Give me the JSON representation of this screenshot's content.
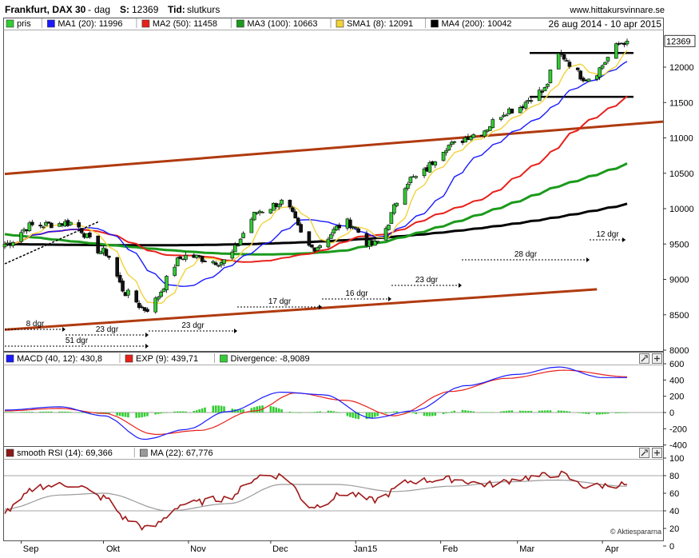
{
  "header": {
    "instrument": "Frankfurt, DAX 30",
    "dash": "-",
    "period": "dag",
    "s_label": "S:",
    "s_value": "12369",
    "time_label": "Tid:",
    "time_value": "slutkurs",
    "site": "www.hittakursvinnare.se",
    "date_range": "26 aug 2014 - 10 apr 2015"
  },
  "price_legend": [
    {
      "label": "pris",
      "color": "#33cc33"
    },
    {
      "label": "MA1 (20): 11996",
      "color": "#1a1aff"
    },
    {
      "label": "MA2 (50): 11458",
      "color": "#e8201a"
    },
    {
      "label": "MA3 (100): 10663",
      "color": "#1c9a1c"
    },
    {
      "label": "SMA1 (8): 12091",
      "color": "#f2d33a"
    },
    {
      "label": "MA4 (200): 10042",
      "color": "#000000"
    }
  ],
  "macd_legend": [
    {
      "label": "MACD (40, 12): 430,8",
      "color": "#1a1aff"
    },
    {
      "label": "EXP (9): 439,71",
      "color": "#e8201a"
    },
    {
      "label": "Divergence: -8,9089",
      "color": "#33cc33"
    }
  ],
  "rsi_legend": [
    {
      "label": "smooth RSI (14): 69,366",
      "color": "#8b1a1a"
    },
    {
      "label": "MA (22): 67,776",
      "color": "#9a9a9a"
    }
  ],
  "last_price_tag": "12369",
  "watermark": "© Aktiespararna",
  "annotations": [
    "8 dgr",
    "51 dgr",
    "23 dgr",
    "23 dgr",
    "17 dgr",
    "16 dgr",
    "23 dgr",
    "28 dgr",
    "12 dgr"
  ],
  "chart_data": [
    {
      "type": "candlestick",
      "title": "Frankfurt, DAX 30",
      "x_tick_labels": [
        "Sep",
        "Okt",
        "Nov",
        "Dec",
        "Jan15",
        "Feb",
        "Mar",
        "Apr"
      ],
      "y_tick_labels": [
        "8000",
        "8500",
        "9000",
        "9500",
        "10000",
        "10500",
        "11000",
        "11500",
        "12000"
      ],
      "ylim": [
        8000,
        12460
      ],
      "y_scale": "linear",
      "grid": false,
      "legend_position": "top",
      "close_anchor_dates": [
        "2014-08-26",
        "2014-09-05",
        "2014-09-19",
        "2014-10-01",
        "2014-10-10",
        "2014-10-16",
        "2014-10-31",
        "2014-11-13",
        "2014-11-28",
        "2014-12-05",
        "2014-12-16",
        "2014-12-29",
        "2015-01-07",
        "2015-01-22",
        "2015-02-05",
        "2015-02-13",
        "2015-02-27",
        "2015-03-10",
        "2015-03-16",
        "2015-03-26",
        "2015-04-10"
      ],
      "close_anchor_values": [
        9500,
        9760,
        9800,
        9390,
        8790,
        8580,
        9330,
        9250,
        9980,
        10090,
        9450,
        9800,
        9490,
        10430,
        10900,
        11050,
        11400,
        11650,
        12170,
        11850,
        12369
      ],
      "moving_averages": [
        {
          "name": "MA1 (20)",
          "last": 11996
        },
        {
          "name": "MA2 (50)",
          "last": 11458
        },
        {
          "name": "MA3 (100)",
          "last": 10663
        },
        {
          "name": "SMA1 (8)",
          "last": 12091
        },
        {
          "name": "MA4 (200)",
          "last": 10042
        }
      ],
      "horizontal_levels": [
        12200,
        11580
      ],
      "trendlines": [
        {
          "from": [
            "2014-08-26",
            10490
          ],
          "to": [
            "2015-04-10",
            11230
          ]
        },
        {
          "from": [
            "2014-08-26",
            8290
          ],
          "to": [
            "2015-03-30",
            8860
          ]
        }
      ],
      "duration_labels": [
        "8 dgr",
        "51 dgr",
        "23 dgr",
        "23 dgr",
        "17 dgr",
        "16 dgr",
        "23 dgr",
        "28 dgr",
        "12 dgr"
      ]
    },
    {
      "type": "line",
      "title": "MACD (40, 12)",
      "y_tick_labels": [
        "600",
        "400",
        "200",
        "0",
        "-200",
        "-400"
      ],
      "ylim": [
        -420,
        620
      ],
      "grid": false,
      "series": [
        {
          "name": "MACD (40, 12)",
          "last": 430.8,
          "anchor_dates": [
            "2014-08-26",
            "2014-09-15",
            "2014-10-01",
            "2014-10-16",
            "2014-10-31",
            "2014-11-15",
            "2014-12-05",
            "2014-12-20",
            "2015-01-07",
            "2015-01-22",
            "2015-02-10",
            "2015-03-01",
            "2015-03-16",
            "2015-04-01",
            "2015-04-10"
          ],
          "anchor_values": [
            30,
            70,
            -40,
            -330,
            -210,
            10,
            250,
            220,
            -70,
            20,
            330,
            470,
            560,
            430,
            430
          ]
        },
        {
          "name": "EXP (9)",
          "last": 439.71,
          "anchor_dates": [
            "2014-08-26",
            "2014-09-15",
            "2014-10-01",
            "2014-10-20",
            "2014-11-05",
            "2014-11-25",
            "2014-12-10",
            "2014-12-28",
            "2015-01-15",
            "2015-02-05",
            "2015-02-25",
            "2015-03-18",
            "2015-04-10"
          ],
          "anchor_values": [
            20,
            50,
            -10,
            -270,
            -220,
            20,
            240,
            150,
            -40,
            260,
            420,
            520,
            440
          ]
        },
        {
          "name": "Divergence",
          "type": "bar",
          "last": -8.9089
        }
      ]
    },
    {
      "type": "line",
      "title": "smooth RSI (14)",
      "y_tick_labels": [
        "100",
        "80",
        "60",
        "40",
        "20",
        "0"
      ],
      "ylim": [
        0,
        100
      ],
      "reference_lines": [
        80,
        40
      ],
      "grid": false,
      "series": [
        {
          "name": "smooth RSI (14)",
          "last": 69.366,
          "anchor_dates": [
            "2014-08-26",
            "2014-09-08",
            "2014-09-20",
            "2014-10-01",
            "2014-10-10",
            "2014-10-17",
            "2014-10-31",
            "2014-11-14",
            "2014-11-28",
            "2014-12-05",
            "2014-12-16",
            "2014-12-29",
            "2015-01-07",
            "2015-01-22",
            "2015-02-05",
            "2015-02-18",
            "2015-03-05",
            "2015-03-16",
            "2015-03-26",
            "2015-04-10"
          ],
          "anchor_values": [
            40,
            68,
            70,
            55,
            30,
            20,
            48,
            54,
            80,
            80,
            45,
            60,
            52,
            74,
            76,
            70,
            78,
            82,
            68,
            70
          ]
        },
        {
          "name": "MA (22)",
          "last": 67.776,
          "anchor_dates": [
            "2014-08-26",
            "2014-09-15",
            "2014-10-01",
            "2014-10-25",
            "2014-11-15",
            "2014-12-05",
            "2014-12-25",
            "2015-01-15",
            "2015-02-05",
            "2015-02-25",
            "2015-03-15",
            "2015-04-10"
          ],
          "anchor_values": [
            42,
            58,
            60,
            40,
            48,
            70,
            70,
            62,
            68,
            73,
            75,
            68
          ]
        }
      ]
    }
  ]
}
